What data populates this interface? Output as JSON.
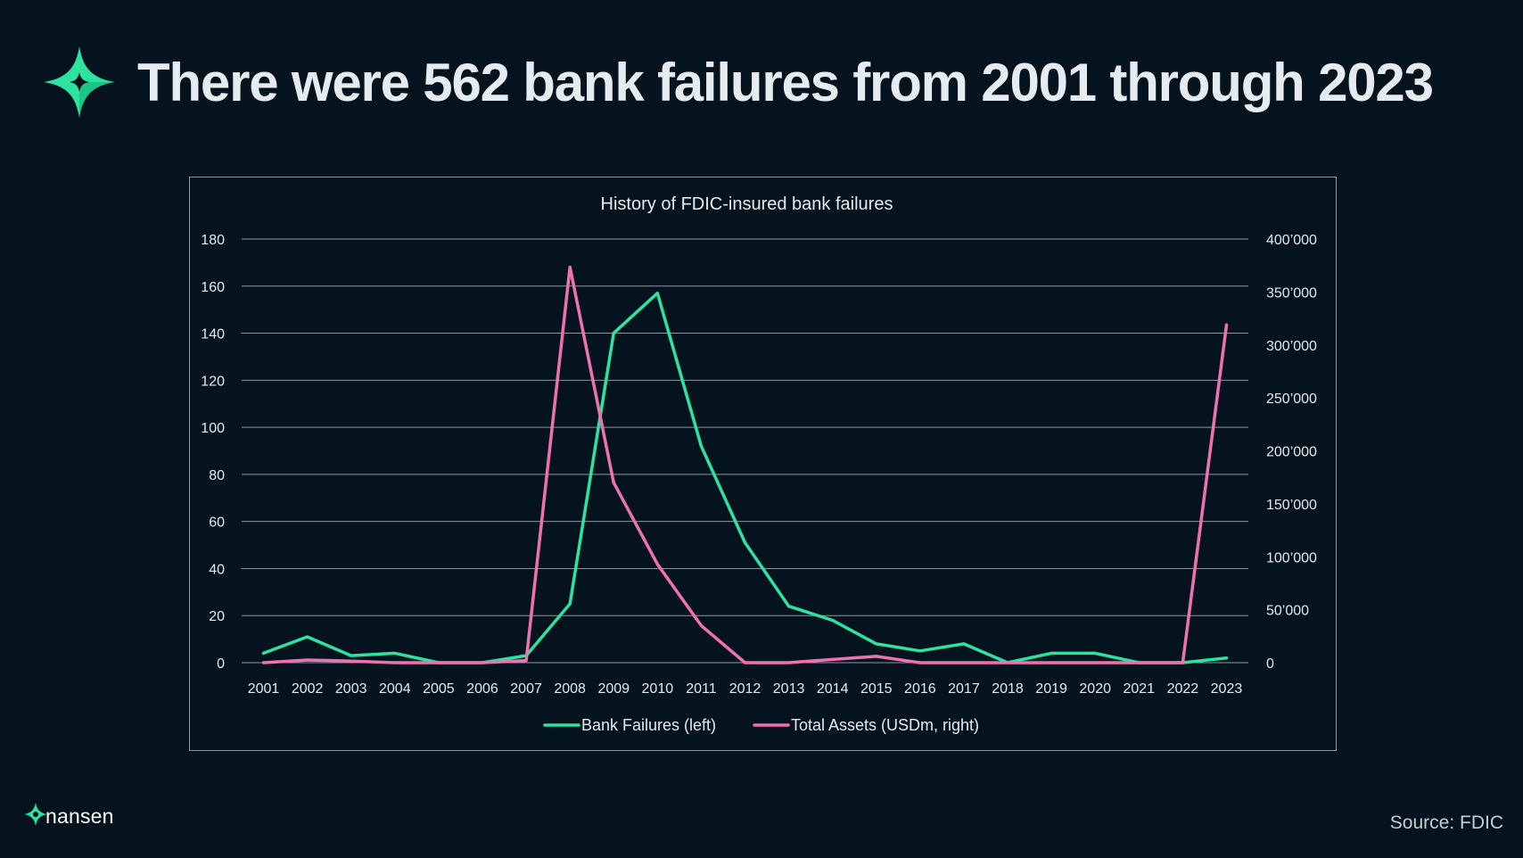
{
  "header": {
    "title": "There were 562 bank failures from 2001 through 2023",
    "icon": "sparkle-star-icon",
    "accent_color": "#2ee2a0"
  },
  "footer": {
    "logo_text": "nansen",
    "source": "Source: FDIC"
  },
  "chart_data": {
    "type": "line",
    "title": "History of FDIC-insured bank failures",
    "x": [
      "2001",
      "2002",
      "2003",
      "2004",
      "2005",
      "2006",
      "2007",
      "2008",
      "2009",
      "2010",
      "2011",
      "2012",
      "2013",
      "2014",
      "2015",
      "2016",
      "2017",
      "2018",
      "2019",
      "2020",
      "2021",
      "2022",
      "2023"
    ],
    "y_left": {
      "ticks": [
        "0",
        "20",
        "40",
        "60",
        "80",
        "100",
        "120",
        "140",
        "160",
        "180"
      ],
      "ylim": [
        0,
        180
      ]
    },
    "y_right": {
      "ticks": [
        "0",
        "50’000",
        "100’000",
        "150’000",
        "200’000",
        "250’000",
        "300’000",
        "350’000",
        "400’000"
      ],
      "ylim": [
        0,
        400000
      ]
    },
    "series": [
      {
        "name": "Bank Failures (left)",
        "axis": "left",
        "color": "#2ee2a0",
        "values": [
          4,
          11,
          3,
          4,
          0,
          0,
          3,
          25,
          140,
          157,
          92,
          51,
          24,
          18,
          8,
          5,
          8,
          0,
          4,
          4,
          0,
          0,
          2
        ]
      },
      {
        "name": "Total Assets (USDm, right)",
        "axis": "right",
        "color": "#ee72b0",
        "values": [
          0,
          2500,
          1500,
          0,
          0,
          0,
          2000,
          373500,
          170000,
          93000,
          35000,
          0,
          0,
          3000,
          6000,
          0,
          0,
          0,
          0,
          0,
          0,
          0,
          319000
        ]
      }
    ],
    "grid": true,
    "legend_position": "bottom"
  }
}
